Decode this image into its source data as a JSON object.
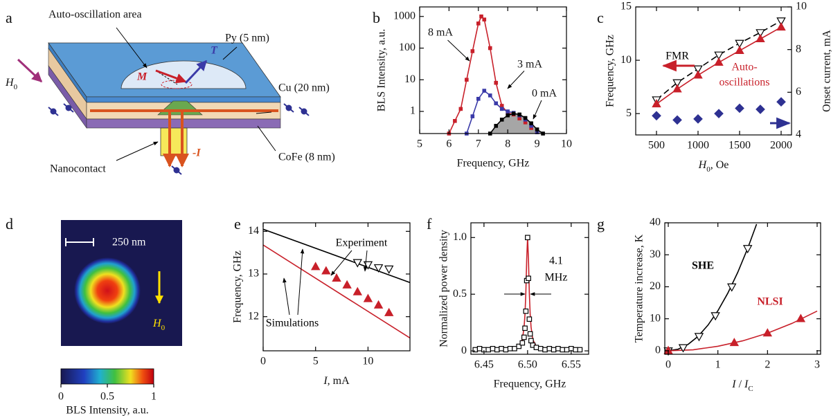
{
  "panel_labels": [
    "a",
    "b",
    "c",
    "d",
    "e",
    "f",
    "g"
  ],
  "diagram": {
    "area": "Auto-oscillation area",
    "py": "Py (5 nm)",
    "cu": "Cu (20 nm)",
    "cofe": "CoFe (8 nm)",
    "nanocontact": "Nanocontact",
    "field": "H",
    "field_sub": "0",
    "m": "M",
    "t": "T",
    "current": "-I"
  },
  "heatmap": {
    "scale_bar": "250 nm",
    "field": "H",
    "field_sub": "0",
    "colorbar": {
      "label": "BLS Intensity, a.u.",
      "xlim": [
        0,
        1
      ],
      "xticks": [
        0,
        0.5,
        1
      ]
    }
  },
  "chart_data": [
    {
      "type": "line",
      "ylabel": "BLS Intensity, a.u.",
      "xlabel": "Frequency, GHz",
      "xlim": [
        5,
        10
      ],
      "xticks": [
        5,
        6,
        7,
        8,
        9,
        10
      ],
      "ylim": [
        0.2,
        2000
      ],
      "yscale": "log",
      "yticks": [
        1,
        10,
        100,
        1000
      ],
      "series": [
        {
          "name": "8 mA",
          "color": "#c8202a",
          "marker": "square",
          "marker_fill": "#c8202a",
          "line": "solid",
          "x": [
            6.0,
            6.2,
            6.4,
            6.6,
            6.8,
            7.0,
            7.1,
            7.2,
            7.4,
            7.6,
            7.8,
            8.0,
            8.2,
            8.4,
            8.6,
            8.8,
            9.0
          ],
          "values": [
            0.2,
            0.5,
            1.2,
            10,
            80,
            600,
            1000,
            800,
            100,
            8,
            1.5,
            0.9,
            0.8,
            0.6,
            0.45,
            0.3,
            0.22
          ]
        },
        {
          "name": "3 mA",
          "color": "#3a3aa8",
          "marker": "square",
          "marker_fill": "#3a3aa8",
          "line": "solid",
          "x": [
            6.6,
            6.8,
            7.0,
            7.2,
            7.4,
            7.6,
            7.8,
            8.0,
            8.2,
            8.4,
            8.6,
            8.8,
            9.0
          ],
          "values": [
            0.2,
            0.7,
            2.5,
            4.5,
            3.2,
            1.8,
            1.2,
            1.0,
            0.9,
            0.75,
            0.55,
            0.35,
            0.22
          ]
        },
        {
          "name": "0 mA",
          "color": "#000000",
          "fill": "#a6a6a6",
          "marker": "square",
          "marker_fill": "#000000",
          "line": "solid",
          "x": [
            7.4,
            7.6,
            7.8,
            8.0,
            8.2,
            8.4,
            8.6,
            8.8,
            9.0,
            9.2
          ],
          "values": [
            0.2,
            0.35,
            0.55,
            0.75,
            0.85,
            0.8,
            0.62,
            0.42,
            0.27,
            0.2
          ]
        }
      ]
    },
    {
      "type": "line",
      "ylabel": "Frequency, GHz",
      "y2label": "Onset current, mA",
      "xlabel": [
        {
          "text": "H",
          "style": "italic"
        },
        {
          "text": "0",
          "style": "sub"
        },
        {
          "text": ", Oe"
        }
      ],
      "xlim": [
        250,
        2125
      ],
      "xticks": [
        500,
        1000,
        1500,
        2000
      ],
      "ylim": [
        3,
        15
      ],
      "yticks": [
        5,
        10,
        15
      ],
      "y2lim": [
        4,
        10
      ],
      "y2ticks": [
        4,
        6,
        8,
        10
      ],
      "annotations": [
        "FMR",
        "Auto-",
        "oscillations"
      ],
      "series": [
        {
          "color": "#000000",
          "marker": "triangle-down",
          "marker_fill": "#ffffff",
          "line": "dashed",
          "x": [
            500,
            750,
            1000,
            1250,
            1500,
            1750,
            2000
          ],
          "values": [
            6.3,
            7.9,
            9.2,
            10.5,
            11.6,
            12.6,
            13.7
          ]
        },
        {
          "color": "#c8202a",
          "marker": "triangle-up",
          "marker_fill": "#c8202a",
          "line": "solid",
          "x": [
            500,
            750,
            1000,
            1250,
            1500,
            1750,
            2000
          ],
          "values": [
            5.9,
            7.3,
            8.6,
            9.8,
            10.9,
            12.0,
            13.1
          ]
        },
        {
          "color": "#2e3192",
          "marker": "diamond",
          "marker_fill": "#2e3192",
          "line": "none",
          "axis": "y2",
          "x": [
            500,
            750,
            1000,
            1250,
            1500,
            1750,
            2000
          ],
          "values": [
            4.9,
            4.7,
            4.75,
            5.0,
            5.25,
            5.2,
            5.55
          ]
        }
      ]
    },
    {
      "type": "line",
      "ylabel": "Frequency, GHz",
      "xlabel": [
        {
          "text": "I",
          "style": "italic"
        },
        {
          "text": ", mA"
        }
      ],
      "xlim": [
        0,
        14
      ],
      "xticks": [
        0,
        5,
        10
      ],
      "ylim": [
        11.2,
        14.2
      ],
      "yticks": [
        12,
        13,
        14
      ],
      "annotations": [
        "Experiment",
        "Simulations"
      ],
      "series": [
        {
          "color": "#000000",
          "marker": "none",
          "line": "solid",
          "x": [
            0,
            14
          ],
          "values": [
            14.05,
            12.8
          ]
        },
        {
          "color": "#c8202a",
          "marker": "none",
          "line": "solid",
          "x": [
            0,
            14
          ],
          "values": [
            13.68,
            11.5
          ]
        },
        {
          "color": "#000000",
          "marker": "triangle-down",
          "marker_fill": "#ffffff",
          "line": "none",
          "x": [
            9,
            10,
            11,
            12
          ],
          "values": [
            13.27,
            13.22,
            13.15,
            13.12
          ]
        },
        {
          "color": "#c8202a",
          "marker": "triangle-up",
          "marker_fill": "#c8202a",
          "line": "none",
          "x": [
            5,
            6,
            7,
            8,
            9,
            10,
            11,
            12
          ],
          "values": [
            13.17,
            13.07,
            12.9,
            12.74,
            12.58,
            12.42,
            12.27,
            12.09
          ]
        }
      ]
    },
    {
      "type": "line",
      "ylabel": "Normalized power density",
      "xlabel": "Frequency, GHz",
      "xlim": [
        6.435,
        6.57
      ],
      "xticks": [
        6.45,
        {
          "value": 6.5,
          "label": "6.50"
        },
        6.55
      ],
      "ylim": [
        -0.03,
        1.13
      ],
      "yticks": [
        0,
        0.5,
        {
          "value": 1,
          "label": "1.0"
        }
      ],
      "annotations": [
        "4.1",
        "MHz"
      ],
      "series": [
        {
          "color": "#000000",
          "marker": "square",
          "marker_fill": "#ffffff",
          "line": "none",
          "x": [
            6.44,
            6.445,
            6.45,
            6.455,
            6.46,
            6.465,
            6.47,
            6.475,
            6.48,
            6.485,
            6.49,
            6.494,
            6.496,
            6.497,
            6.498,
            6.499,
            6.5,
            6.501,
            6.502,
            6.503,
            6.504,
            6.506,
            6.51,
            6.515,
            6.52,
            6.525,
            6.53,
            6.535,
            6.54,
            6.545,
            6.55,
            6.555,
            6.56
          ],
          "values": [
            0.01,
            0.02,
            0.01,
            0.01,
            0.02,
            0.01,
            0.02,
            0.01,
            0.02,
            0.02,
            0.04,
            0.07,
            0.12,
            0.2,
            0.35,
            0.62,
            1.0,
            0.64,
            0.28,
            0.15,
            0.09,
            0.05,
            0.03,
            0.02,
            0.01,
            0.02,
            0.01,
            0.02,
            0.01,
            0.01,
            0.02,
            0.01,
            0.01
          ]
        },
        {
          "color": "#c8202a",
          "marker": "none",
          "line": "solid",
          "x": [
            6.44,
            6.46,
            6.48,
            6.49,
            6.494,
            6.496,
            6.497,
            6.498,
            6.499,
            6.5,
            6.501,
            6.502,
            6.503,
            6.504,
            6.506,
            6.51,
            6.52,
            6.54,
            6.56
          ],
          "values": [
            0,
            0.01,
            0.01,
            0.04,
            0.1,
            0.21,
            0.32,
            0.51,
            0.81,
            1,
            0.81,
            0.51,
            0.32,
            0.21,
            0.1,
            0.04,
            0.01,
            0.01,
            0
          ]
        }
      ]
    },
    {
      "type": "line",
      "ylabel": "Temperature increase, K",
      "xlabel": [
        {
          "text": "I",
          "style": "italic"
        },
        {
          "text": " / "
        },
        {
          "text": "I",
          "style": "italic"
        },
        {
          "text": "C",
          "style": "sub"
        }
      ],
      "xlim": [
        -0.07,
        3.07
      ],
      "xticks": [
        0,
        1,
        2,
        3
      ],
      "ylim": [
        -1.1,
        40
      ],
      "yticks": [
        0,
        10,
        20,
        30,
        40
      ],
      "annotations": [
        "SHE",
        "NLSI"
      ],
      "series": [
        {
          "color": "#000000",
          "marker": "none",
          "line": "solid",
          "x": [
            0,
            0.2,
            0.4,
            0.6,
            0.8,
            1.0,
            1.2,
            1.4,
            1.6,
            1.78
          ],
          "values": [
            0,
            0.5,
            2,
            4.5,
            8,
            12.5,
            18,
            24.5,
            32,
            39.6
          ]
        },
        {
          "color": "#c8202a",
          "marker": "none",
          "line": "solid",
          "x": [
            0,
            0.5,
            1,
            1.5,
            2,
            2.5,
            3
          ],
          "values": [
            0,
            0.3,
            1.4,
            3.1,
            5.5,
            8.6,
            12.4
          ]
        },
        {
          "color": "#000000",
          "marker": "triangle-down",
          "marker_fill": "#ffffff",
          "line": "none",
          "x": [
            0,
            0.3,
            0.62,
            0.95,
            1.28,
            1.6
          ],
          "values": [
            0,
            1,
            4.5,
            11,
            20,
            32
          ]
        },
        {
          "color": "#c8202a",
          "marker": "triangle-up",
          "marker_fill": "#c8202a",
          "line": "none",
          "x": [
            0,
            1.33,
            2,
            2.67
          ],
          "values": [
            0,
            2.5,
            5.5,
            10
          ]
        }
      ]
    }
  ]
}
